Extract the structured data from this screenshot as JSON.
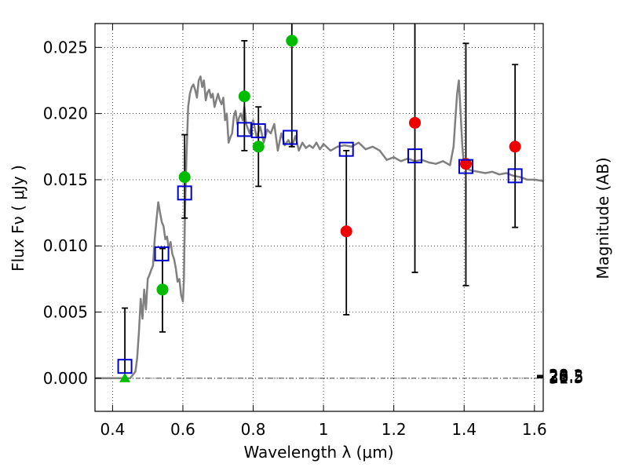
{
  "chart_data": {
    "type": "scatter",
    "xlabel": "Wavelength  λ (μm)",
    "ylabel": "Flux  Fν  ( μJy )",
    "y2label": "Magnitude (AB)",
    "xlim": [
      0.35,
      1.625
    ],
    "ylim": [
      -0.0025,
      0.0268
    ],
    "grid": true,
    "xticks": [
      {
        "value": 0.4,
        "label": "0.4"
      },
      {
        "value": 0.6,
        "label": "0.6"
      },
      {
        "value": 0.8,
        "label": "0.8"
      },
      {
        "value": 1.0,
        "label": "1"
      },
      {
        "value": 1.2,
        "label": "1.2"
      },
      {
        "value": 1.4,
        "label": "1.4"
      },
      {
        "value": 1.6,
        "label": "1.6"
      }
    ],
    "yticks": [
      {
        "value": 0.0,
        "label": "0.000"
      },
      {
        "value": 0.005,
        "label": "0.005"
      },
      {
        "value": 0.01,
        "label": "0.010"
      },
      {
        "value": 0.015,
        "label": "0.015"
      },
      {
        "value": 0.02,
        "label": "0.020"
      },
      {
        "value": 0.025,
        "label": "0.025"
      }
    ],
    "y2ticks": [
      {
        "value": 28,
        "label": "28"
      },
      {
        "value": 28.2,
        "label": "28.2"
      },
      {
        "value": 28.5,
        "label": "28.5"
      },
      {
        "value": 29,
        "label": "29"
      },
      {
        "value": 29.5,
        "label": "29.5"
      },
      {
        "value": 30,
        "label": "30"
      },
      {
        "value": 31,
        "label": "31"
      }
    ],
    "colors": {
      "model": "#808080",
      "detection": "#00bb00",
      "nondetection": "#ee0000",
      "model_flux": "#0000cc",
      "errorbar": "#000000"
    },
    "series": [
      {
        "name": "model spectrum",
        "kind": "line",
        "x": [
          0.35,
          0.45,
          0.465,
          0.47,
          0.475,
          0.48,
          0.485,
          0.49,
          0.495,
          0.5,
          0.505,
          0.51,
          0.515,
          0.52,
          0.525,
          0.53,
          0.535,
          0.54,
          0.545,
          0.55,
          0.555,
          0.56,
          0.565,
          0.57,
          0.575,
          0.58,
          0.585,
          0.59,
          0.595,
          0.6,
          0.603,
          0.606,
          0.61,
          0.615,
          0.62,
          0.625,
          0.63,
          0.635,
          0.64,
          0.645,
          0.65,
          0.655,
          0.66,
          0.665,
          0.67,
          0.675,
          0.68,
          0.685,
          0.69,
          0.695,
          0.7,
          0.705,
          0.71,
          0.715,
          0.72,
          0.725,
          0.73,
          0.735,
          0.74,
          0.745,
          0.75,
          0.755,
          0.76,
          0.765,
          0.77,
          0.775,
          0.78,
          0.79,
          0.8,
          0.81,
          0.82,
          0.83,
          0.84,
          0.85,
          0.86,
          0.87,
          0.88,
          0.89,
          0.9,
          0.91,
          0.92,
          0.93,
          0.94,
          0.95,
          0.96,
          0.97,
          0.98,
          0.99,
          1.0,
          1.02,
          1.04,
          1.06,
          1.08,
          1.1,
          1.12,
          1.14,
          1.16,
          1.18,
          1.2,
          1.22,
          1.24,
          1.26,
          1.28,
          1.3,
          1.32,
          1.34,
          1.36,
          1.37,
          1.375,
          1.38,
          1.385,
          1.39,
          1.395,
          1.4,
          1.41,
          1.42,
          1.44,
          1.46,
          1.48,
          1.5,
          1.52,
          1.54,
          1.56,
          1.58,
          1.6,
          1.625
        ],
        "y": [
          0.0,
          0.0,
          0.0005,
          0.0015,
          0.0035,
          0.006,
          0.0045,
          0.0067,
          0.0052,
          0.0075,
          0.0078,
          0.0082,
          0.0085,
          0.0105,
          0.012,
          0.0133,
          0.0125,
          0.0118,
          0.0115,
          0.0105,
          0.0107,
          0.0098,
          0.0103,
          0.0094,
          0.009,
          0.0083,
          0.0073,
          0.0075,
          0.0063,
          0.0058,
          0.0075,
          0.0125,
          0.0165,
          0.0205,
          0.0215,
          0.022,
          0.0222,
          0.0218,
          0.0212,
          0.0225,
          0.0228,
          0.022,
          0.0225,
          0.021,
          0.0216,
          0.0218,
          0.0212,
          0.0215,
          0.0205,
          0.021,
          0.0215,
          0.021,
          0.0207,
          0.0212,
          0.0195,
          0.02,
          0.0178,
          0.0182,
          0.0185,
          0.0198,
          0.0202,
          0.0192,
          0.0197,
          0.02,
          0.0195,
          0.0205,
          0.0192,
          0.0185,
          0.0195,
          0.0182,
          0.019,
          0.0178,
          0.0188,
          0.0185,
          0.0192,
          0.0172,
          0.0185,
          0.0176,
          0.018,
          0.0175,
          0.0183,
          0.0172,
          0.0178,
          0.0174,
          0.0176,
          0.0174,
          0.0178,
          0.0173,
          0.0177,
          0.0172,
          0.0175,
          0.0176,
          0.0175,
          0.0178,
          0.0173,
          0.0175,
          0.0172,
          0.0165,
          0.0167,
          0.0164,
          0.0166,
          0.0164,
          0.0165,
          0.0163,
          0.0162,
          0.0164,
          0.0161,
          0.0175,
          0.0195,
          0.0215,
          0.0225,
          0.02,
          0.0175,
          0.016,
          0.0158,
          0.0157,
          0.0156,
          0.0155,
          0.0156,
          0.0154,
          0.0155,
          0.0153,
          0.0152,
          0.015,
          0.015,
          0.0149
        ]
      },
      {
        "name": "detections",
        "kind": "points",
        "marker": "circle",
        "points": [
          {
            "x": 0.542,
            "y": 0.0067,
            "err_lo": 0.0035,
            "err_hi": 0.0098
          },
          {
            "x": 0.605,
            "y": 0.0152,
            "err_lo": 0.0121,
            "err_hi": 0.0184
          },
          {
            "x": 0.775,
            "y": 0.0213,
            "err_lo": 0.0172,
            "err_hi": 0.0255
          },
          {
            "x": 0.815,
            "y": 0.0175,
            "err_lo": 0.0145,
            "err_hi": 0.0205
          },
          {
            "x": 0.91,
            "y": 0.0255,
            "err_lo": 0.0175,
            "err_hi": 0.0268
          }
        ]
      },
      {
        "name": "non-detections",
        "kind": "points",
        "marker": "circle",
        "points": [
          {
            "x": 1.065,
            "y": 0.0111,
            "err_lo": 0.0048,
            "err_hi": 0.0172
          },
          {
            "x": 1.26,
            "y": 0.0193,
            "err_lo": 0.008,
            "err_hi": 0.0268
          },
          {
            "x": 1.405,
            "y": 0.0162,
            "err_lo": 0.007,
            "err_hi": 0.0253
          },
          {
            "x": 1.545,
            "y": 0.0175,
            "err_lo": 0.0114,
            "err_hi": 0.0237
          }
        ]
      },
      {
        "name": "model fluxes",
        "kind": "points",
        "marker": "square",
        "points": [
          {
            "x": 0.435,
            "y": 0.0009
          },
          {
            "x": 0.54,
            "y": 0.0094
          },
          {
            "x": 0.605,
            "y": 0.014
          },
          {
            "x": 0.775,
            "y": 0.0188
          },
          {
            "x": 0.815,
            "y": 0.0187
          },
          {
            "x": 0.905,
            "y": 0.0182
          },
          {
            "x": 1.065,
            "y": 0.0173
          },
          {
            "x": 1.26,
            "y": 0.0168
          },
          {
            "x": 1.405,
            "y": 0.016
          },
          {
            "x": 1.545,
            "y": 0.0153
          }
        ]
      },
      {
        "name": "upper limit",
        "kind": "points",
        "marker": "triangle",
        "points": [
          {
            "x": 0.435,
            "y": 0.0,
            "err_lo": 0.0,
            "err_hi": 0.0053
          }
        ]
      }
    ]
  }
}
